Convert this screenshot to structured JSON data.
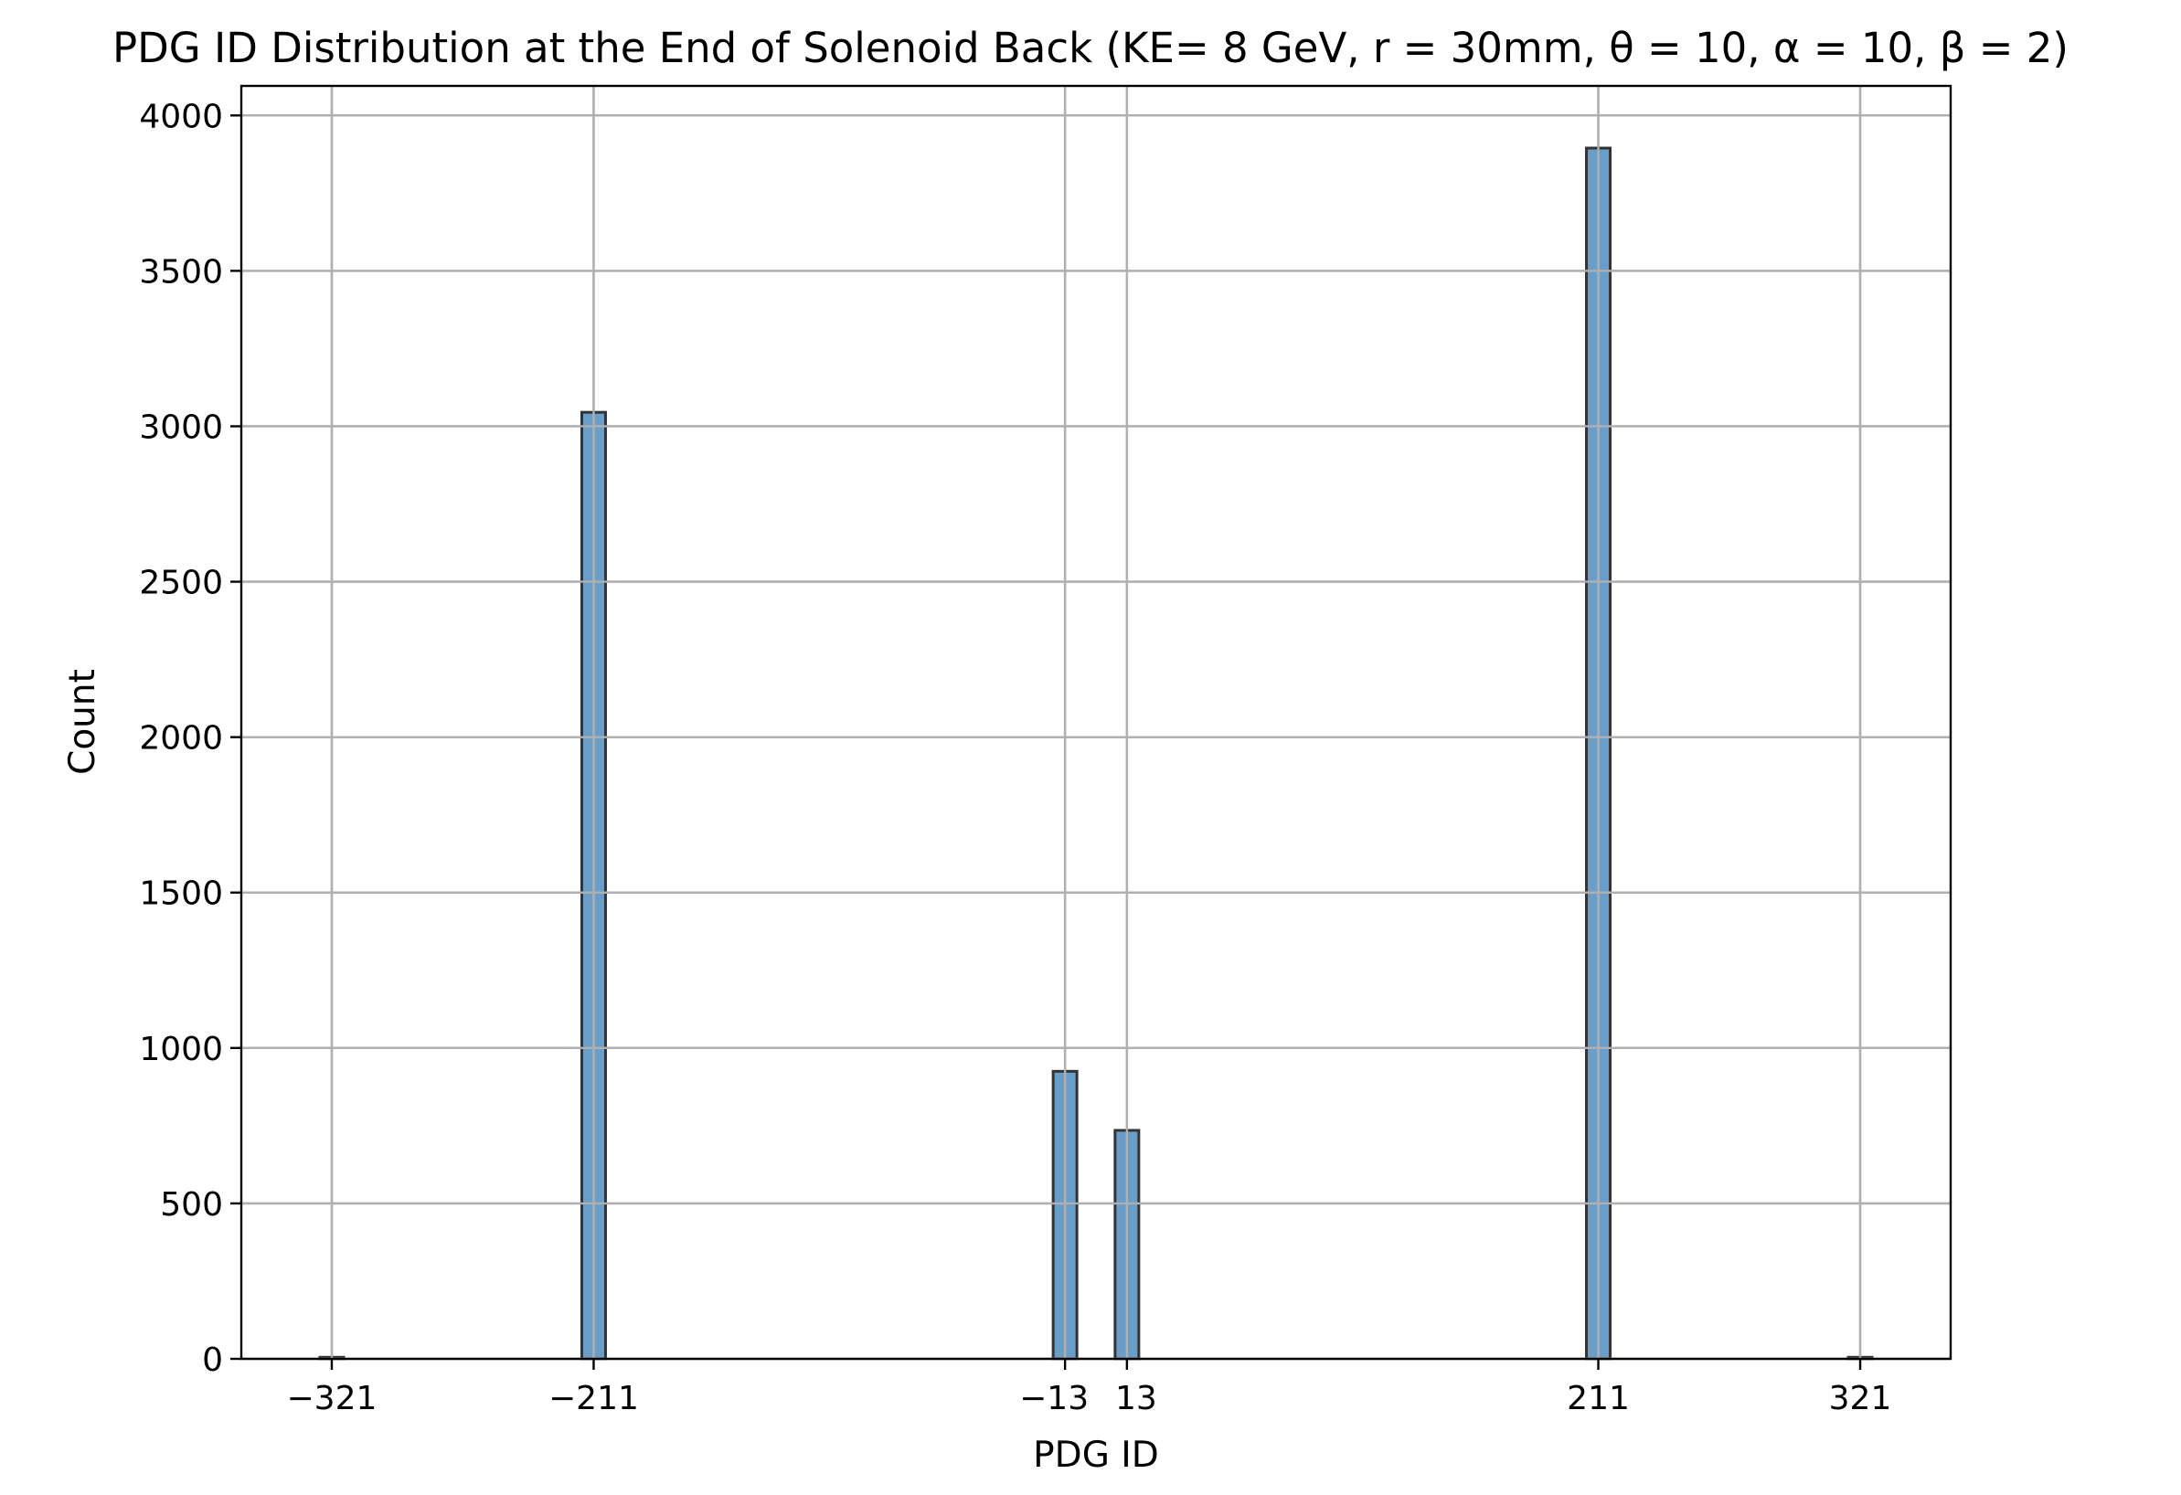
{
  "chart_data": {
    "type": "bar",
    "title": "PDG ID Distribution at the End of Solenoid Back (KE= 8 GeV, r = 30mm, θ = 10, α = 10, β = 2)",
    "xlabel": "PDG ID",
    "ylabel": "Count",
    "categories": [
      "−321",
      "−211",
      "−13",
      "13",
      "211",
      "321"
    ],
    "x": [
      -321,
      -211,
      -13,
      13,
      211,
      321
    ],
    "values": [
      5,
      3045,
      925,
      735,
      3895,
      5
    ],
    "xlim": [
      -359,
      359
    ],
    "ylim": [
      0,
      4095
    ],
    "yticks": [
      0,
      500,
      1000,
      1500,
      2000,
      2500,
      3000,
      3500,
      4000
    ],
    "xticks": [
      -321,
      -211,
      -13,
      13,
      211,
      321
    ],
    "xtick_labels": [
      "−321",
      "−211",
      "−13",
      "13",
      "211",
      "321"
    ],
    "grid": true,
    "bar_color": "#6a9dc8",
    "bar_edge_color": "#333333"
  }
}
